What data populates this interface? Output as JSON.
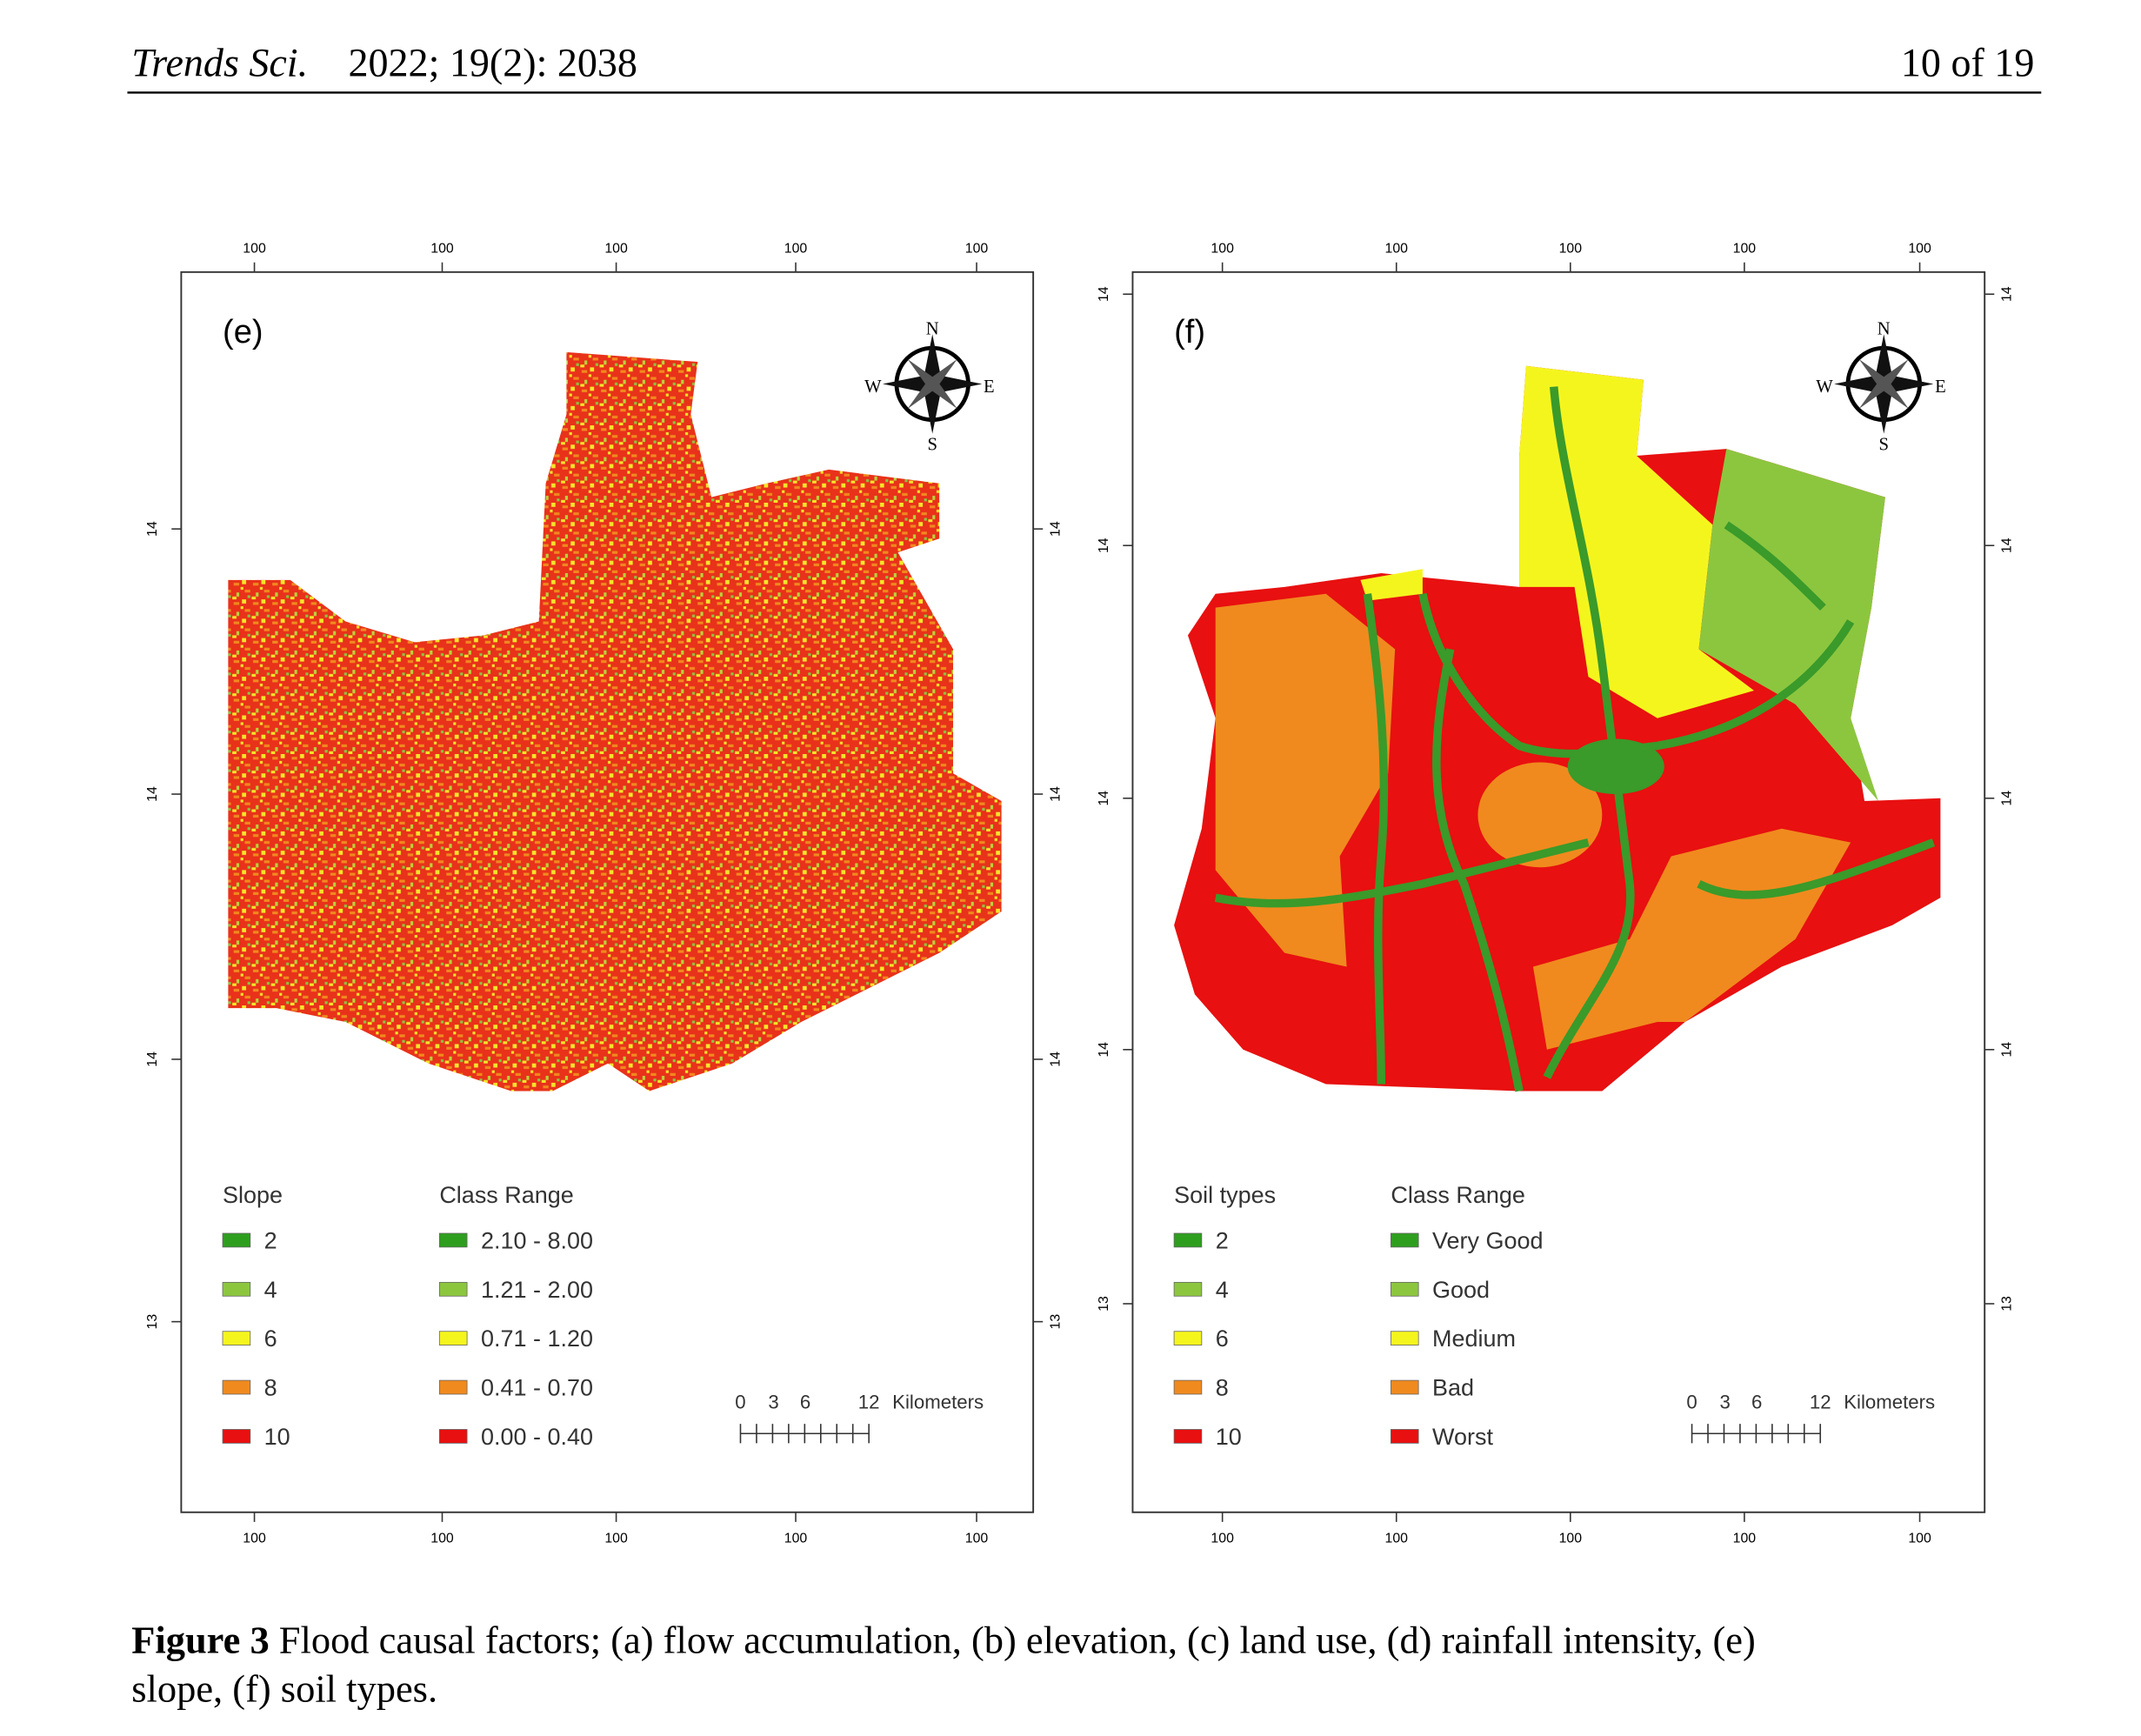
{
  "header": {
    "journal": "Trends Sci.",
    "citation": "2022; 19(2): 2038",
    "page": "10 of 19"
  },
  "panels": [
    {
      "label": "(e)",
      "legend_title": "Slope",
      "class_title": "Class Range",
      "items": [
        {
          "value": "2",
          "range": "2.10 - 8.00"
        },
        {
          "value": "4",
          "range": "1.21 - 2.00"
        },
        {
          "value": "6",
          "range": "0.71 - 1.20"
        },
        {
          "value": "8",
          "range": "0.41 - 0.70"
        },
        {
          "value": "10",
          "range": "0.00 - 0.40"
        }
      ],
      "scale": {
        "ticks": [
          "0",
          "3",
          "6",
          "12"
        ],
        "unit": "Kilometers"
      },
      "compass": [
        "N",
        "S",
        "W",
        "E"
      ],
      "top_ticks": [
        "100",
        "100",
        "100",
        "100",
        "100"
      ],
      "bottom_ticks": [
        "100",
        "100",
        "100",
        "100",
        "100"
      ],
      "left_ticks": [
        "14",
        "14",
        "14",
        "13"
      ],
      "right_ticks": [
        "14",
        "14",
        "14",
        "13"
      ]
    },
    {
      "label": "(f)",
      "legend_title": "Soil types",
      "class_title": "Class Range",
      "items": [
        {
          "value": "2",
          "range": "Very Good"
        },
        {
          "value": "4",
          "range": "Good"
        },
        {
          "value": "6",
          "range": "Medium"
        },
        {
          "value": "8",
          "range": "Bad"
        },
        {
          "value": "10",
          "range": "Worst"
        }
      ],
      "scale": {
        "ticks": [
          "0",
          "3",
          "6",
          "12"
        ],
        "unit": "Kilometers"
      },
      "compass": [
        "N",
        "S",
        "W",
        "E"
      ],
      "top_ticks": [
        "100",
        "100",
        "100",
        "100",
        "100"
      ],
      "bottom_ticks": [
        "100",
        "100",
        "100",
        "100",
        "100"
      ],
      "left_ticks": [
        "14",
        "14",
        "14",
        "14",
        "13"
      ],
      "right_ticks": [
        "14",
        "14",
        "14",
        "14",
        "13"
      ]
    }
  ],
  "caption": {
    "label": "Figure 3",
    "lines": [
      "Flood causal factors; (a) flow accumulation, (b) elevation, (c) land use, (d) rainfall intensity, (e)",
      "slope, (f) soil types."
    ]
  }
}
